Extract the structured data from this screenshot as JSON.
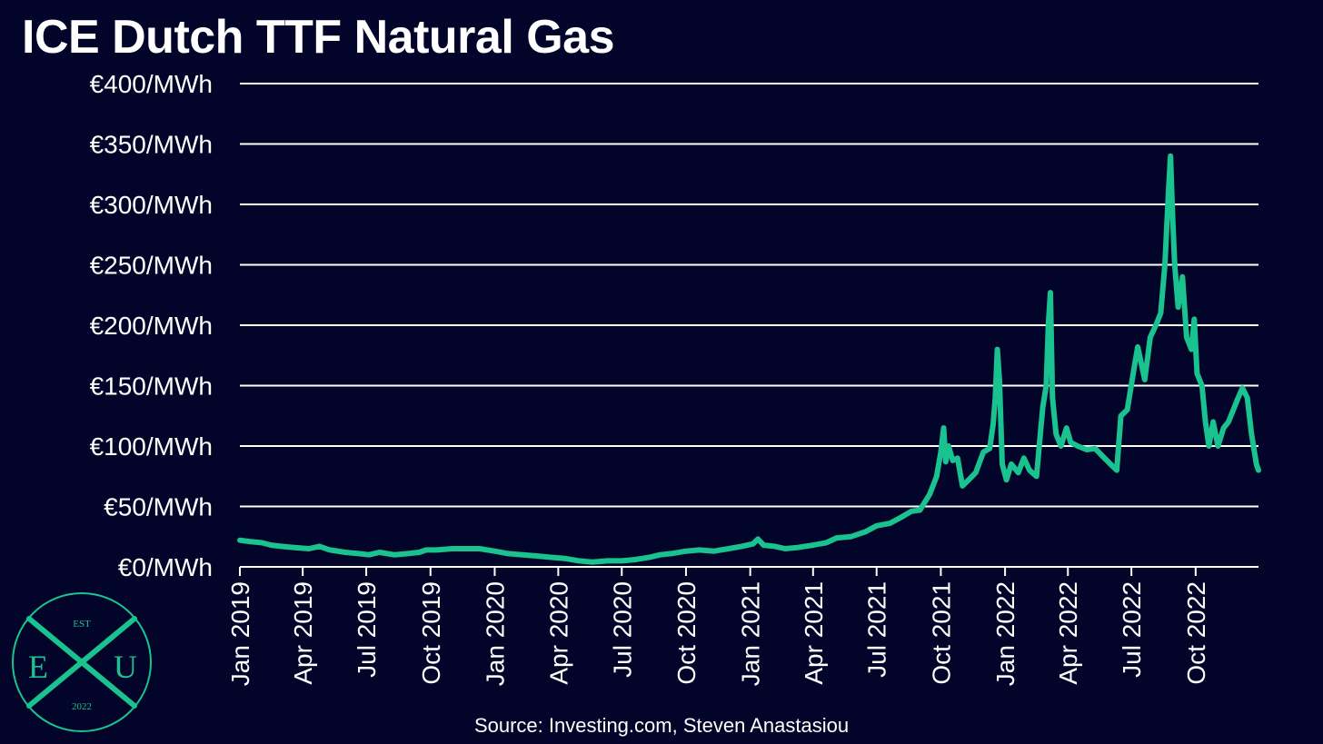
{
  "title": "ICE Dutch TTF Natural Gas",
  "source": "Source: Investing.com, Steven Anastasiou",
  "colors": {
    "background": "#02042a",
    "line": "#19c28f",
    "grid": "#ffffff",
    "text": "#ffffff"
  },
  "logo": {
    "est": "EST",
    "left": "E",
    "right": "U",
    "year": "2022"
  },
  "chart_data": {
    "type": "line",
    "title": "ICE Dutch TTF Natural Gas",
    "xlabel": "",
    "ylabel": "",
    "ylim": [
      0,
      400
    ],
    "xlim": [
      "2019-01-01",
      "2022-12-30"
    ],
    "y_ticks": [
      0,
      50,
      100,
      150,
      200,
      250,
      300,
      350,
      400
    ],
    "y_tick_labels": [
      "€0/MWh",
      "€50/MWh",
      "€100/MWh",
      "€150/MWh",
      "€200/MWh",
      "€250/MWh",
      "€300/MWh",
      "€350/MWh",
      "€400/MWh"
    ],
    "x_ticks": [
      "2019-01-01",
      "2019-04-01",
      "2019-07-01",
      "2019-10-01",
      "2020-01-01",
      "2020-04-01",
      "2020-07-01",
      "2020-10-01",
      "2021-01-01",
      "2021-04-01",
      "2021-07-01",
      "2021-10-01",
      "2022-01-01",
      "2022-04-01",
      "2022-07-01",
      "2022-10-01"
    ],
    "x_tick_labels": [
      "Jan 2019",
      "Apr 2019",
      "Jul 2019",
      "Oct 2019",
      "Jan 2020",
      "Apr 2020",
      "Jul 2020",
      "Oct 2020",
      "Jan 2021",
      "Apr 2021",
      "Jul 2021",
      "Oct 2021",
      "Jan 2022",
      "Apr 2022",
      "Jul 2022",
      "Oct 2022"
    ],
    "grid": "horizontal",
    "legend": "none",
    "series": [
      {
        "points": [
          [
            "2019-01-01",
            22
          ],
          [
            "2019-01-15",
            21
          ],
          [
            "2019-02-01",
            20
          ],
          [
            "2019-02-15",
            18
          ],
          [
            "2019-03-01",
            17
          ],
          [
            "2019-03-20",
            16
          ],
          [
            "2019-04-10",
            15
          ],
          [
            "2019-04-25",
            17
          ],
          [
            "2019-05-10",
            14
          ],
          [
            "2019-06-01",
            12
          ],
          [
            "2019-06-20",
            11
          ],
          [
            "2019-07-05",
            10
          ],
          [
            "2019-07-20",
            12
          ],
          [
            "2019-08-10",
            10
          ],
          [
            "2019-08-30",
            11
          ],
          [
            "2019-09-15",
            12
          ],
          [
            "2019-09-25",
            14
          ],
          [
            "2019-10-10",
            14
          ],
          [
            "2019-11-01",
            15
          ],
          [
            "2019-11-20",
            15
          ],
          [
            "2019-12-10",
            15
          ],
          [
            "2020-01-01",
            13
          ],
          [
            "2020-01-20",
            11
          ],
          [
            "2020-02-10",
            10
          ],
          [
            "2020-03-01",
            9
          ],
          [
            "2020-03-20",
            8
          ],
          [
            "2020-04-10",
            7
          ],
          [
            "2020-05-01",
            5
          ],
          [
            "2020-05-20",
            4
          ],
          [
            "2020-06-10",
            5
          ],
          [
            "2020-07-01",
            5
          ],
          [
            "2020-07-20",
            6
          ],
          [
            "2020-08-10",
            8
          ],
          [
            "2020-08-25",
            10
          ],
          [
            "2020-09-10",
            11
          ],
          [
            "2020-10-01",
            13
          ],
          [
            "2020-10-20",
            14
          ],
          [
            "2020-11-10",
            13
          ],
          [
            "2020-12-01",
            15
          ],
          [
            "2020-12-20",
            17
          ],
          [
            "2021-01-05",
            19
          ],
          [
            "2021-01-12",
            23
          ],
          [
            "2021-01-20",
            18
          ],
          [
            "2021-02-05",
            17
          ],
          [
            "2021-02-20",
            15
          ],
          [
            "2021-03-10",
            16
          ],
          [
            "2021-04-01",
            18
          ],
          [
            "2021-04-20",
            20
          ],
          [
            "2021-05-05",
            24
          ],
          [
            "2021-05-25",
            25
          ],
          [
            "2021-06-15",
            29
          ],
          [
            "2021-07-01",
            34
          ],
          [
            "2021-07-20",
            36
          ],
          [
            "2021-08-05",
            41
          ],
          [
            "2021-08-20",
            46
          ],
          [
            "2021-09-01",
            47
          ],
          [
            "2021-09-15",
            60
          ],
          [
            "2021-09-25",
            75
          ],
          [
            "2021-10-01",
            95
          ],
          [
            "2021-10-05",
            115
          ],
          [
            "2021-10-08",
            87
          ],
          [
            "2021-10-12",
            100
          ],
          [
            "2021-10-18",
            88
          ],
          [
            "2021-10-25",
            90
          ],
          [
            "2021-11-01",
            67
          ],
          [
            "2021-11-10",
            72
          ],
          [
            "2021-11-20",
            78
          ],
          [
            "2021-12-01",
            95
          ],
          [
            "2021-12-10",
            98
          ],
          [
            "2021-12-15",
            118
          ],
          [
            "2021-12-18",
            140
          ],
          [
            "2021-12-21",
            180
          ],
          [
            "2021-12-24",
            155
          ],
          [
            "2021-12-28",
            85
          ],
          [
            "2022-01-03",
            72
          ],
          [
            "2022-01-10",
            85
          ],
          [
            "2022-01-20",
            78
          ],
          [
            "2022-01-28",
            90
          ],
          [
            "2022-02-05",
            80
          ],
          [
            "2022-02-15",
            75
          ],
          [
            "2022-02-24",
            132
          ],
          [
            "2022-03-01",
            150
          ],
          [
            "2022-03-04",
            200
          ],
          [
            "2022-03-07",
            227
          ],
          [
            "2022-03-10",
            140
          ],
          [
            "2022-03-15",
            110
          ],
          [
            "2022-03-22",
            100
          ],
          [
            "2022-03-30",
            115
          ],
          [
            "2022-04-05",
            103
          ],
          [
            "2022-04-15",
            100
          ],
          [
            "2022-04-28",
            97
          ],
          [
            "2022-05-10",
            98
          ],
          [
            "2022-05-20",
            92
          ],
          [
            "2022-06-01",
            85
          ],
          [
            "2022-06-10",
            80
          ],
          [
            "2022-06-16",
            125
          ],
          [
            "2022-06-25",
            130
          ],
          [
            "2022-07-05",
            165
          ],
          [
            "2022-07-10",
            182
          ],
          [
            "2022-07-20",
            155
          ],
          [
            "2022-07-28",
            190
          ],
          [
            "2022-08-05",
            200
          ],
          [
            "2022-08-12",
            210
          ],
          [
            "2022-08-18",
            250
          ],
          [
            "2022-08-23",
            310
          ],
          [
            "2022-08-26",
            340
          ],
          [
            "2022-08-29",
            290
          ],
          [
            "2022-09-01",
            250
          ],
          [
            "2022-09-06",
            215
          ],
          [
            "2022-09-12",
            240
          ],
          [
            "2022-09-18",
            190
          ],
          [
            "2022-09-25",
            180
          ],
          [
            "2022-09-29",
            205
          ],
          [
            "2022-10-03",
            160
          ],
          [
            "2022-10-10",
            150
          ],
          [
            "2022-10-15",
            120
          ],
          [
            "2022-10-20",
            100
          ],
          [
            "2022-10-26",
            120
          ],
          [
            "2022-11-02",
            100
          ],
          [
            "2022-11-10",
            115
          ],
          [
            "2022-11-17",
            120
          ],
          [
            "2022-11-24",
            130
          ],
          [
            "2022-12-01",
            140
          ],
          [
            "2022-12-07",
            148
          ],
          [
            "2022-12-14",
            140
          ],
          [
            "2022-12-20",
            110
          ],
          [
            "2022-12-27",
            85
          ],
          [
            "2022-12-30",
            80
          ]
        ]
      }
    ]
  }
}
